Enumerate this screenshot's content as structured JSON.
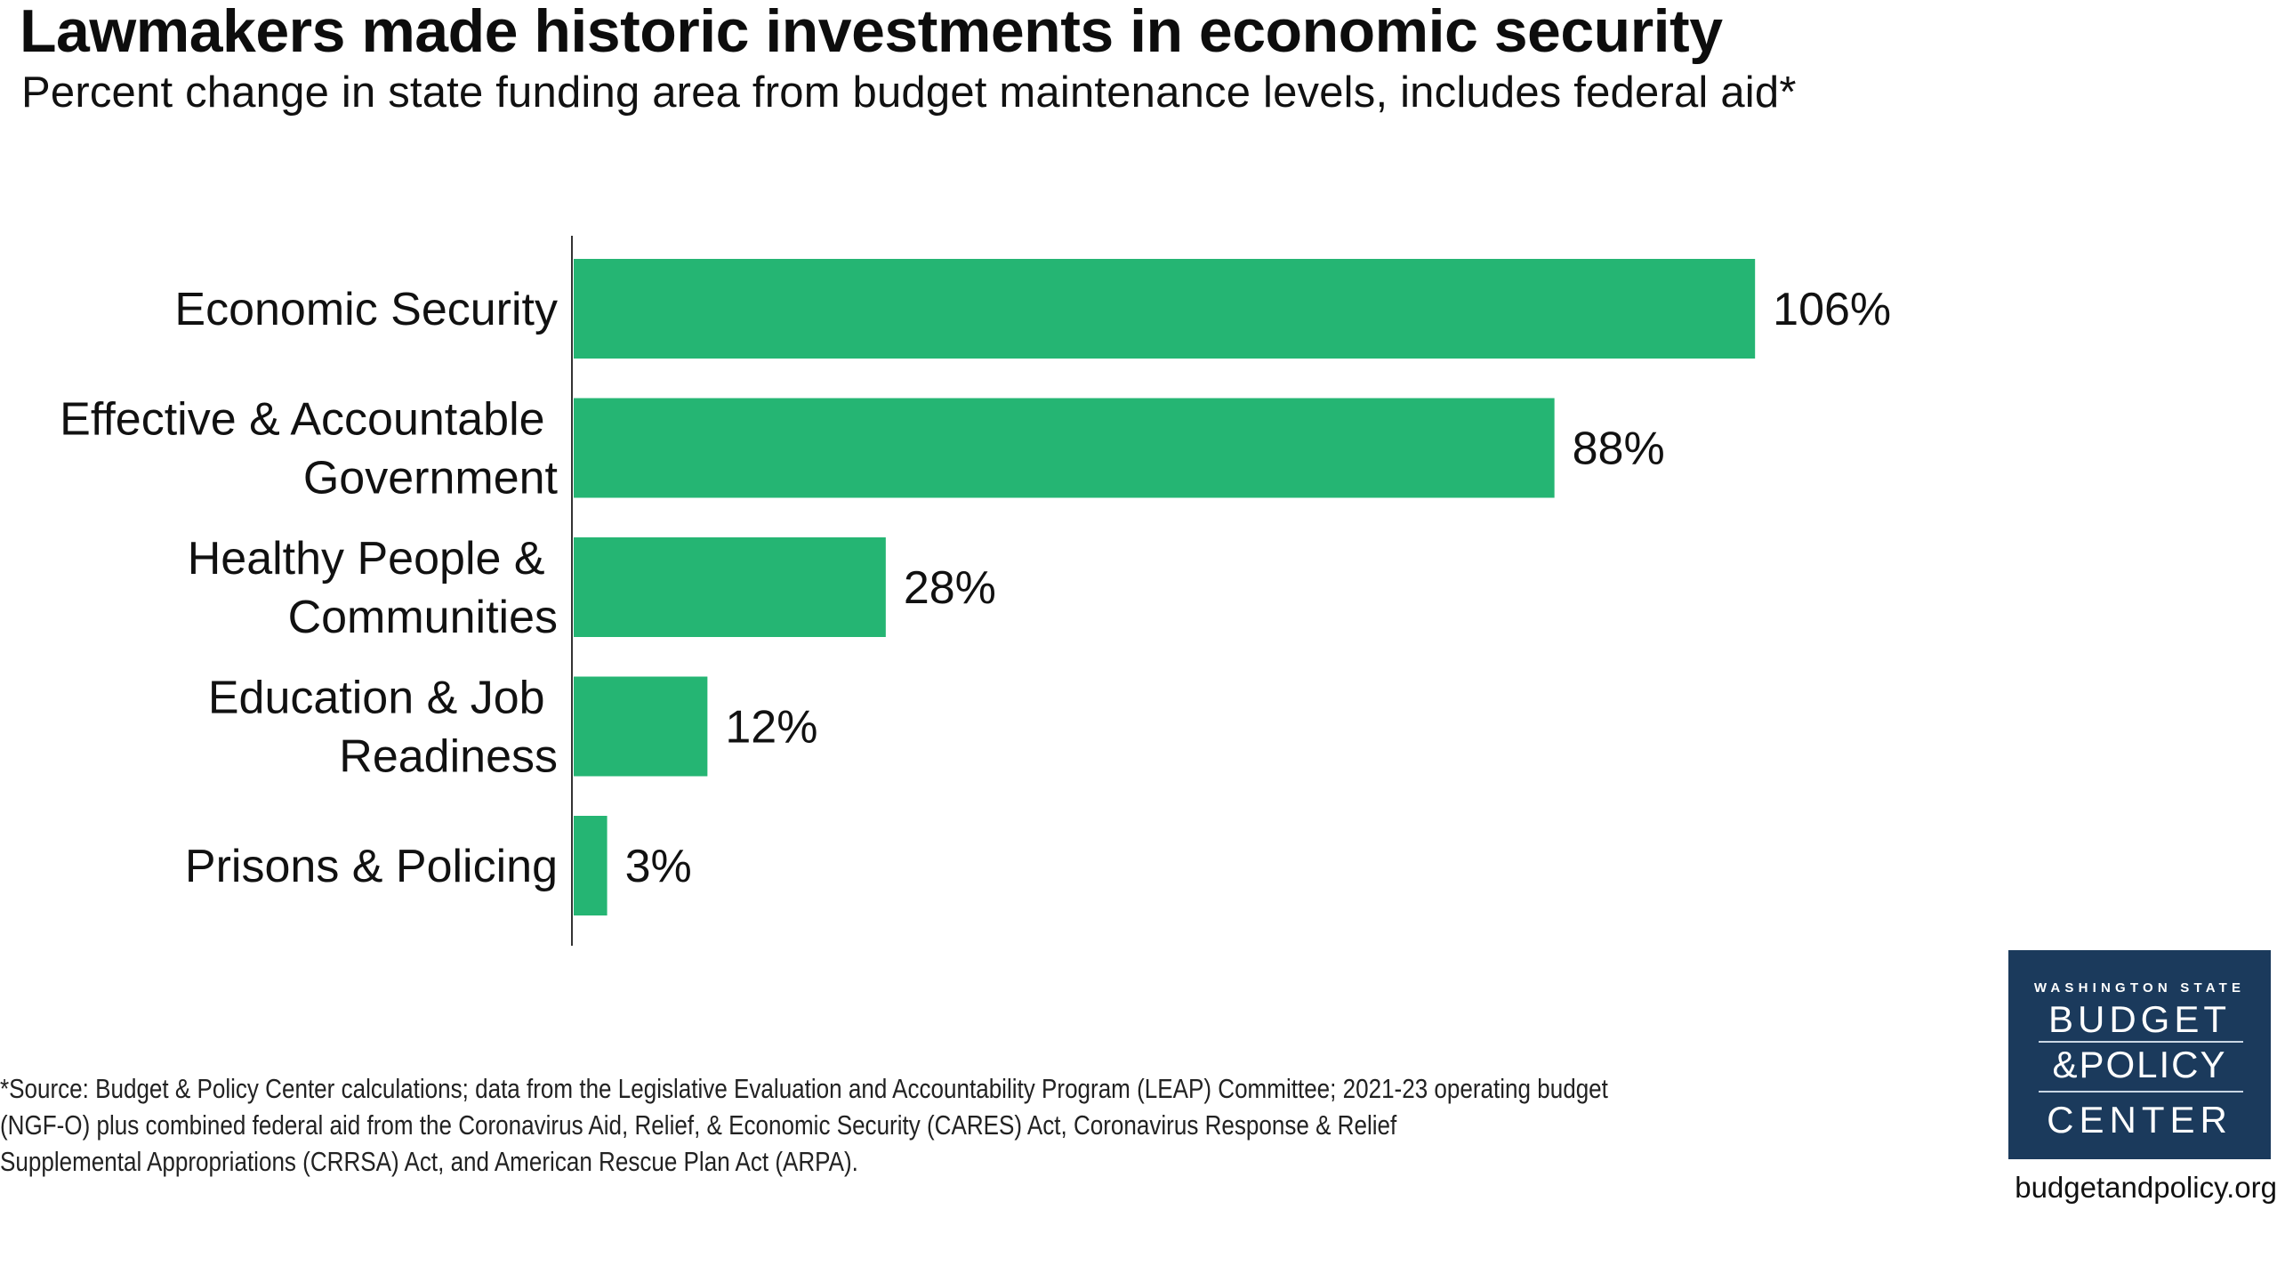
{
  "header": {
    "title": "Lawmakers made historic investments in economic security",
    "subtitle": "Percent change in state funding area from budget maintenance levels, includes federal aid*"
  },
  "chart_data": {
    "type": "bar",
    "orientation": "horizontal",
    "title": "Lawmakers made historic investments in economic security",
    "subtitle": "Percent change in state funding area from budget maintenance levels, includes federal aid*",
    "xlabel": "",
    "ylabel": "",
    "unit": "%",
    "categories": [
      [
        "Economic Security"
      ],
      [
        "Effective & Accountable ",
        "Government"
      ],
      [
        "Healthy People & ",
        "Communities"
      ],
      [
        "Education & Job ",
        "Readiness"
      ],
      [
        "Prisons & Policing"
      ]
    ],
    "values": [
      106,
      88,
      28,
      12,
      3
    ],
    "data_labels": [
      "106%",
      "88%",
      "28%",
      "12%",
      "3%"
    ],
    "xlim": [
      0,
      120
    ],
    "grid": false,
    "legend": "none",
    "bar_color": "#25b573"
  },
  "footnote": {
    "lines": [
      "*Source: Budget & Policy Center calculations; data from the Legislative Evaluation and Accountability Program (LEAP) Committee; 2021-23 operating budget",
      "(NGF-O) plus combined federal aid from the Coronavirus Aid, Relief, & Economic Security (CARES) Act, Coronavirus Response & Relief",
      "Supplemental Appropriations (CRRSA) Act, and American Rescue Plan Act (ARPA)."
    ]
  },
  "logo": {
    "line1": "WASHINGTON STATE",
    "line2": "BUDGET",
    "line3": "&POLICY",
    "line4": "CENTER",
    "background": "#1b3a5c",
    "url": "budgetandpolicy.org"
  }
}
